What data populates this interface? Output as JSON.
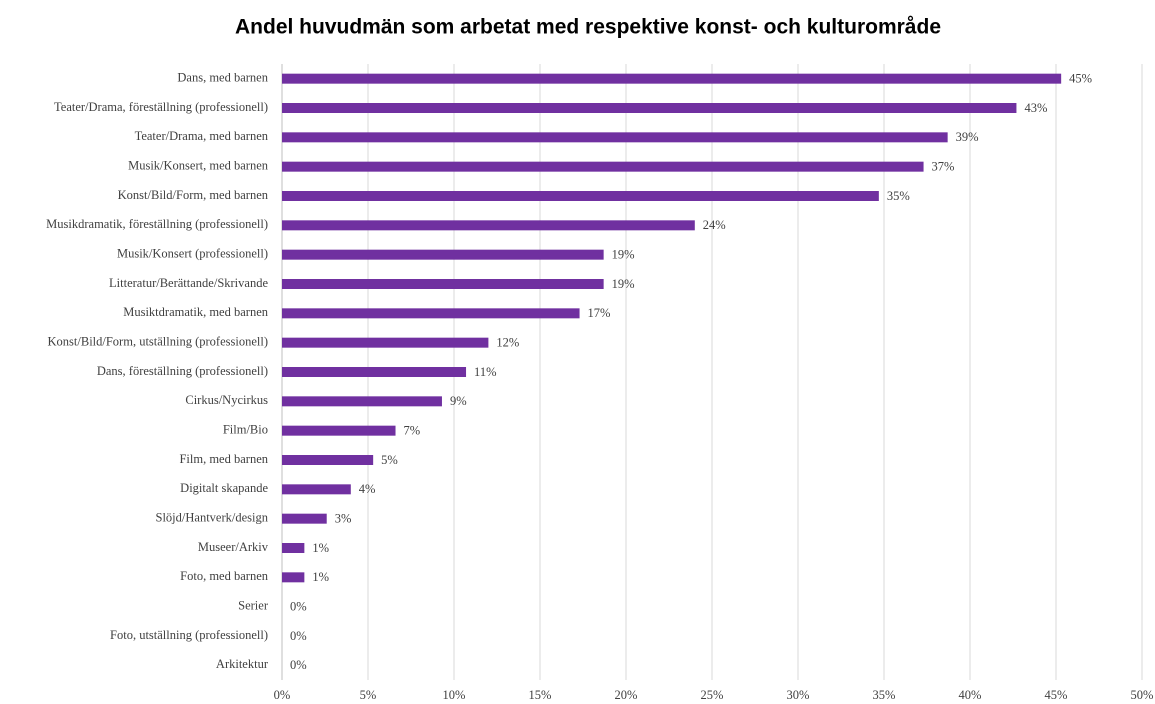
{
  "chart_data": {
    "type": "bar",
    "orientation": "horizontal",
    "title": "Andel huvudmän som arbetat med respektive konst- och kulturområde",
    "categories": [
      "Dans, med barnen",
      "Teater/Drama, föreställning (professionell)",
      "Teater/Drama, med barnen",
      "Musik/Konsert, med barnen",
      "Konst/Bild/Form, med barnen",
      "Musikdramatik, föreställning (professionell)",
      "Musik/Konsert (professionell)",
      "Litteratur/Berättande/Skrivande",
      "Musiktdramatik, med barnen",
      "Konst/Bild/Form, utställning (professionell)",
      "Dans, föreställning (professionell)",
      "Cirkus/Nycirkus",
      "Film/Bio",
      "Film, med barnen",
      "Digitalt skapande",
      "Slöjd/Hantverk/design",
      "Museer/Arkiv",
      "Foto, med barnen",
      "Serier",
      "Foto, utställning (professionell)",
      "Arkitektur"
    ],
    "values": [
      45.3,
      42.7,
      38.7,
      37.3,
      34.7,
      24.0,
      18.7,
      18.7,
      17.3,
      12.0,
      10.7,
      9.3,
      6.6,
      5.3,
      4.0,
      2.6,
      1.3,
      1.3,
      0,
      0,
      0
    ],
    "value_labels": [
      "45%",
      "43%",
      "39%",
      "37%",
      "35%",
      "24%",
      "19%",
      "19%",
      "17%",
      "12%",
      "11%",
      "9%",
      "7%",
      "5%",
      "4%",
      "3%",
      "1%",
      "1%",
      "0%",
      "0%",
      "0%"
    ],
    "color": "#7030a0",
    "xlim": [
      0,
      50
    ],
    "xticks": [
      {
        "value": 0,
        "label": "0%"
      },
      {
        "value": 5,
        "label": "5%"
      },
      {
        "value": 10,
        "label": "10%"
      },
      {
        "value": 15,
        "label": "15%"
      },
      {
        "value": 20,
        "label": "20%"
      },
      {
        "value": 25,
        "label": "25%"
      },
      {
        "value": 30,
        "label": "30%"
      },
      {
        "value": 35,
        "label": "35%"
      },
      {
        "value": 40,
        "label": "40%"
      },
      {
        "value": 45,
        "label": "45%"
      },
      {
        "value": 50,
        "label": "50%"
      }
    ],
    "grid": true
  }
}
